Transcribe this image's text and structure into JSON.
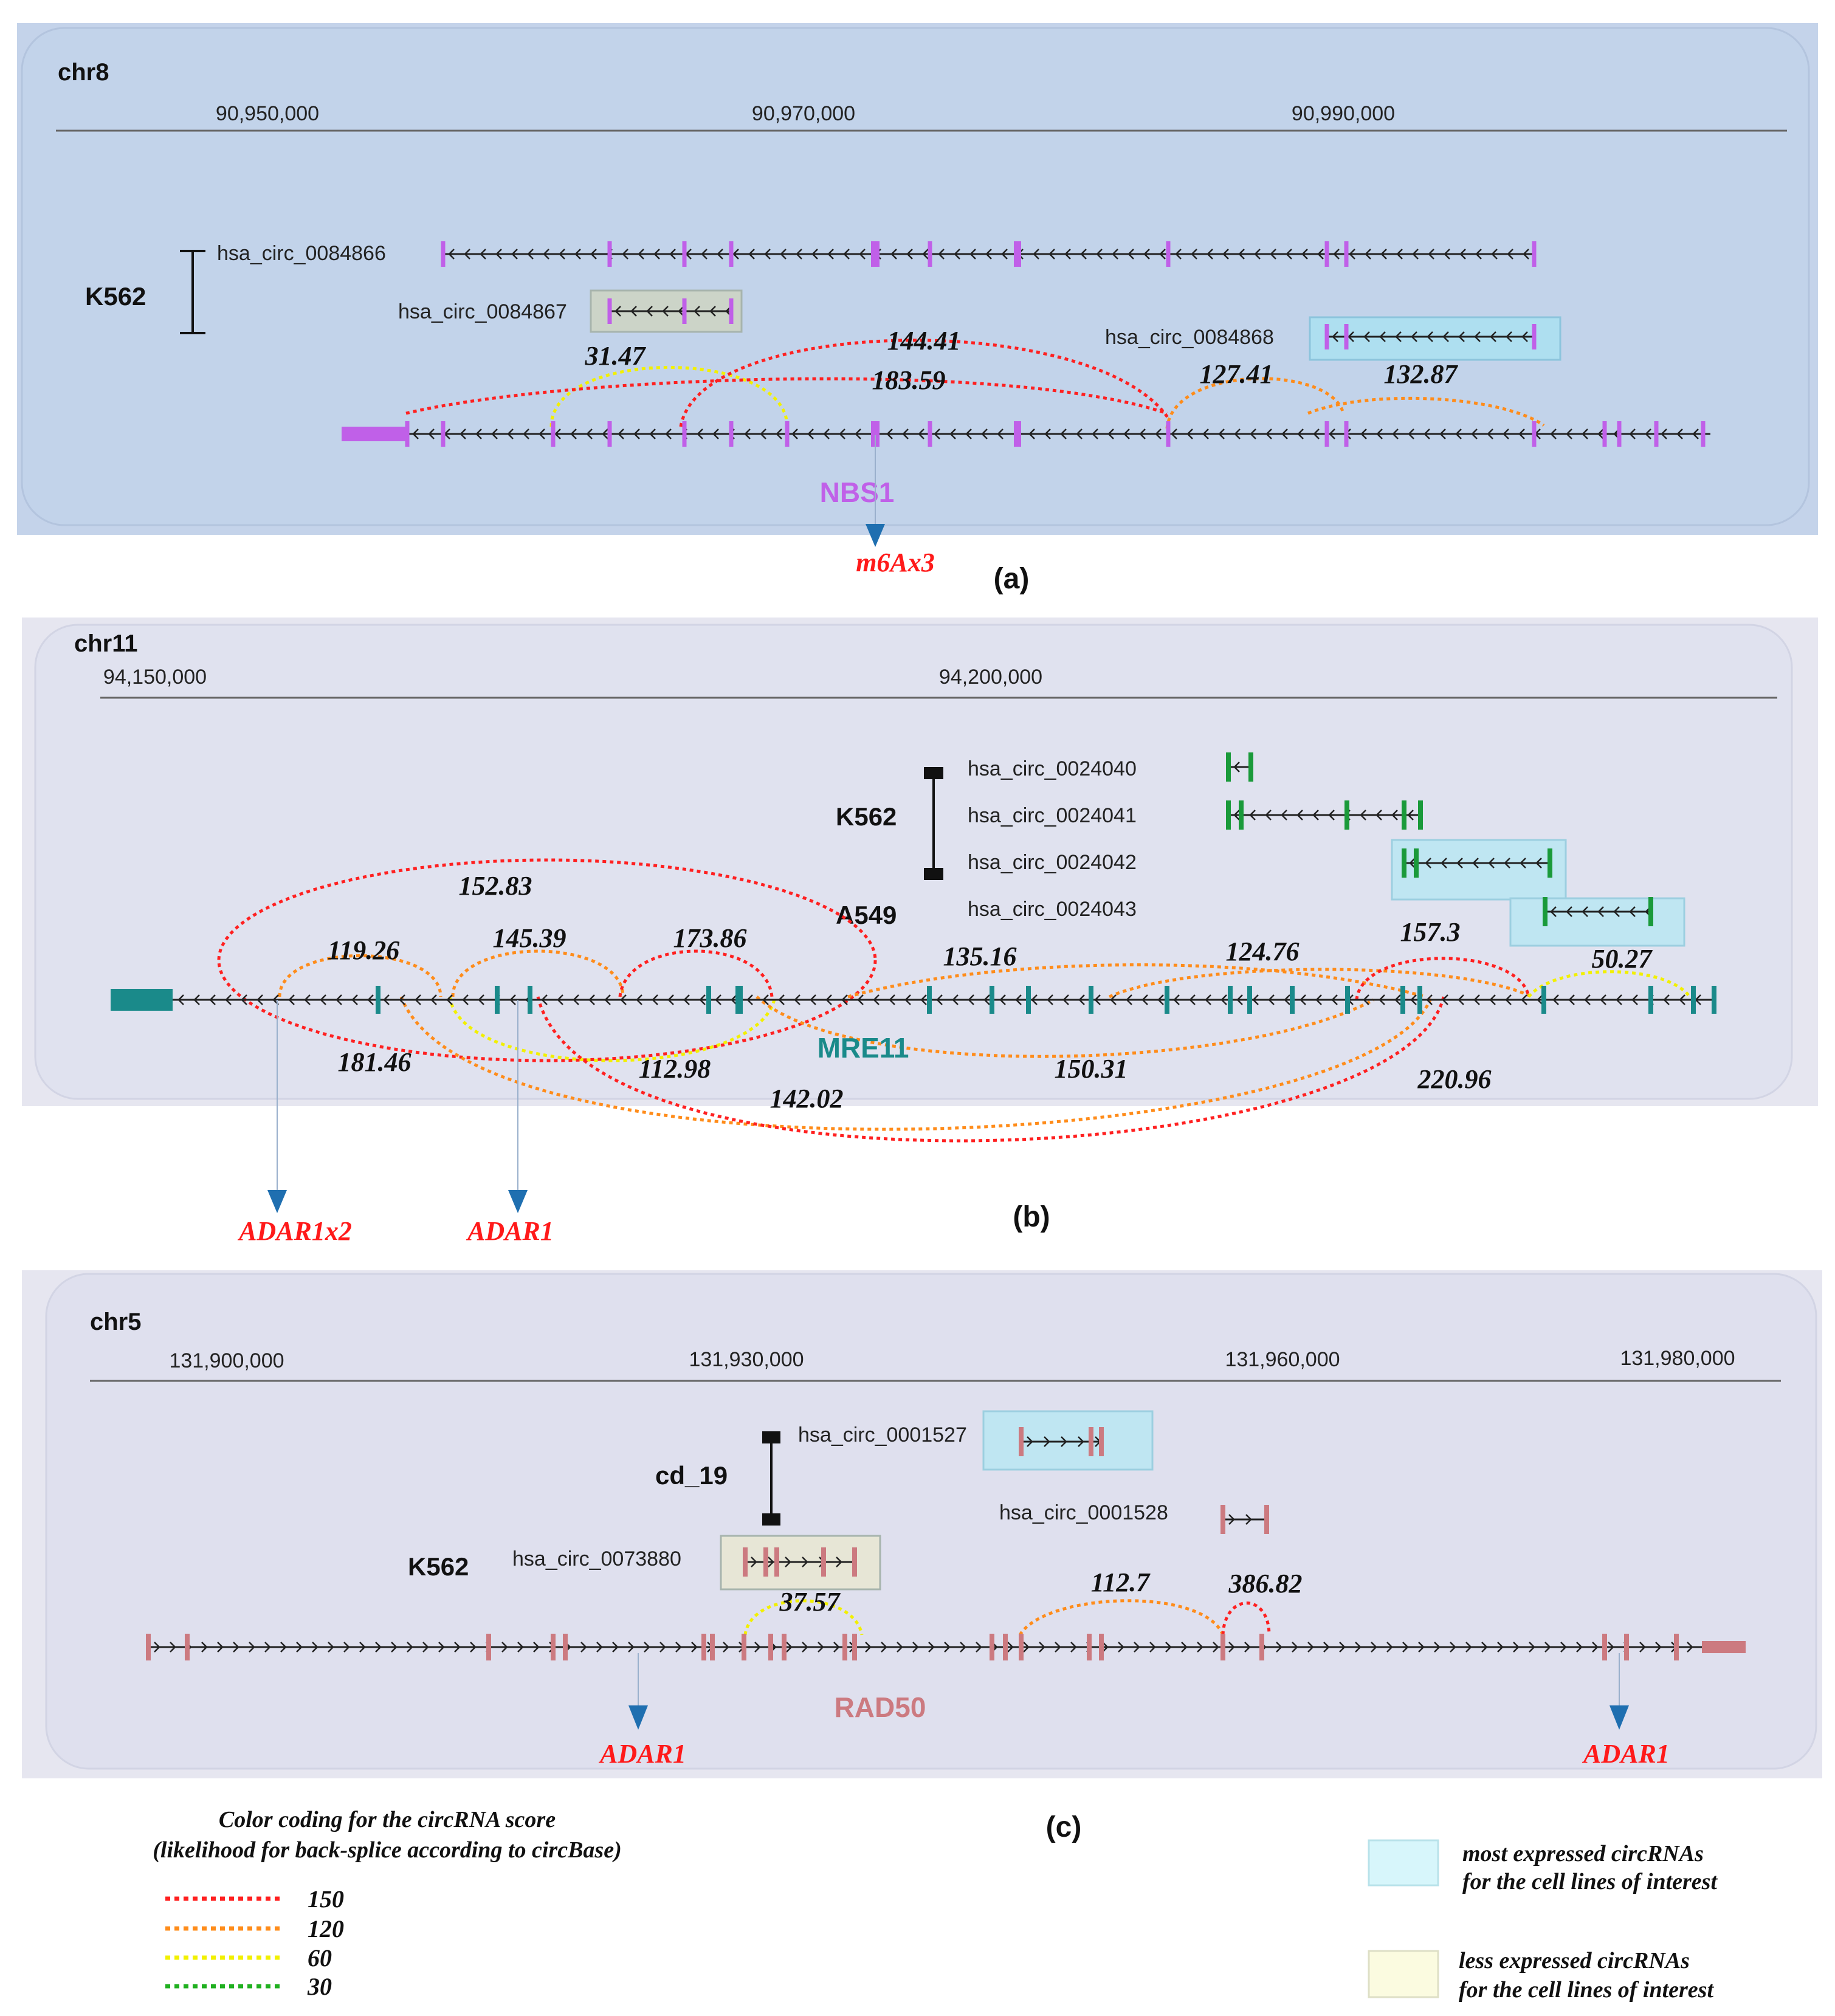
{
  "colors": {
    "score_150": "#ff2020",
    "score_120": "#ff8c1a",
    "score_60": "#f2f000",
    "score_30": "#20b020",
    "most_box": "#bfeef4",
    "less_box": "#eaeccf",
    "adar": "#ff1a1a",
    "arrow": "#1f6fb0",
    "nbs1": "#c060e8",
    "mre11": "#1a8a8a",
    "rad50": "#cc7a80"
  },
  "panels": [
    {
      "id": "a",
      "label": "(a)",
      "chrom": "chr8",
      "ticks": [
        "90,950,000",
        "90,970,000",
        "90,990,000"
      ],
      "gene": "NBS1",
      "cell_lines": [
        "K562"
      ],
      "circ_ids": [
        "hsa_circ_0084866",
        "hsa_circ_0084867",
        "hsa_circ_0084868"
      ],
      "scores": [
        "31.47",
        "144.41",
        "183.59",
        "127.41",
        "132.87"
      ],
      "annotations": [
        "m6Ax3"
      ]
    },
    {
      "id": "b",
      "label": "(b)",
      "chrom": "chr11",
      "ticks": [
        "94,150,000",
        "94,200,000"
      ],
      "gene": "MRE11",
      "cell_lines": [
        "K562",
        "A549"
      ],
      "circ_ids": [
        "hsa_circ_0024040",
        "hsa_circ_0024041",
        "hsa_circ_0024042",
        "hsa_circ_0024043"
      ],
      "scores": [
        "152.83",
        "119.26",
        "145.39",
        "173.86",
        "135.16",
        "124.76",
        "157.3",
        "50.27",
        "181.46",
        "112.98",
        "150.31",
        "142.02",
        "220.96"
      ],
      "annotations": [
        "ADAR1x2",
        "ADAR1"
      ]
    },
    {
      "id": "c",
      "label": "(c)",
      "chrom": "chr5",
      "ticks": [
        "131,900,000",
        "131,930,000",
        "131,960,000",
        "131,980,000"
      ],
      "gene": "RAD50",
      "cell_lines": [
        "cd_19",
        "K562"
      ],
      "circ_ids": [
        "hsa_circ_0001527",
        "hsa_circ_0001528",
        "hsa_circ_0073880"
      ],
      "scores": [
        "37.57",
        "112.7",
        "386.82"
      ],
      "annotations": [
        "ADAR1",
        "ADAR1"
      ]
    }
  ],
  "legend": {
    "title_line1": "Color coding for the circRNA score",
    "title_line2": "(likelihood for back-splice according to circBase)",
    "items": [
      {
        "value": "150",
        "color": "#ff2020"
      },
      {
        "value": "120",
        "color": "#ff8c1a"
      },
      {
        "value": "60",
        "color": "#f2f000"
      },
      {
        "value": "30",
        "color": "#20b020"
      }
    ],
    "most_line1": "most expressed circRNAs",
    "most_line2": "for the cell lines of interest",
    "less_line1": "less expressed circRNAs",
    "less_line2": "for the cell lines of interest"
  }
}
